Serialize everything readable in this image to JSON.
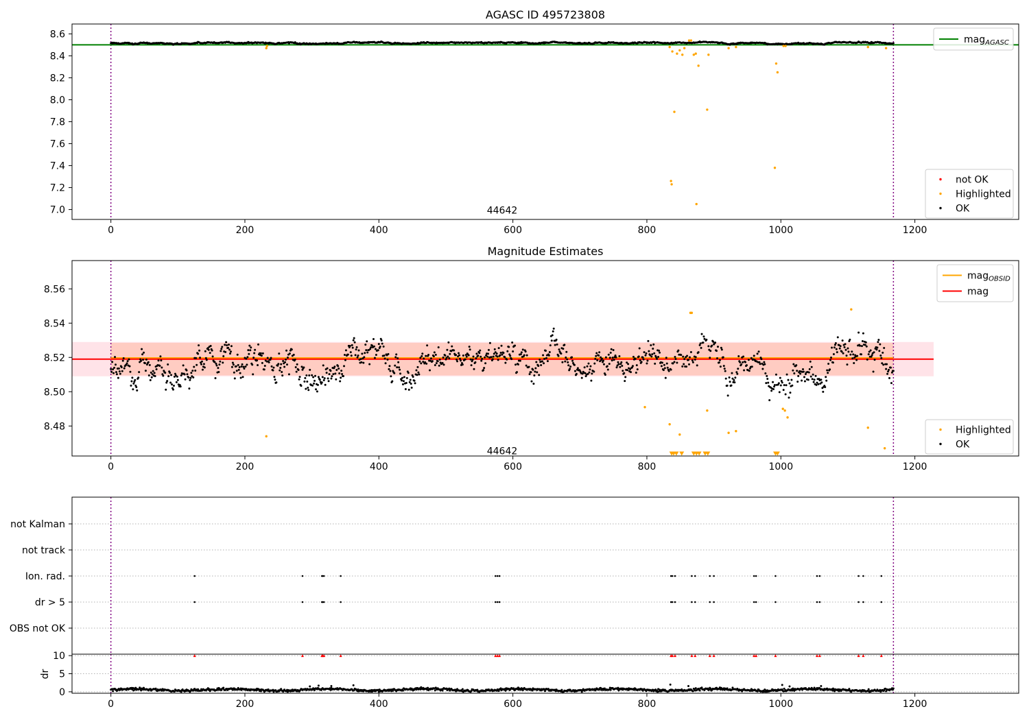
{
  "colors": {
    "ok": "#000000",
    "highlighted": "#ffa500",
    "not_ok": "#ff0000",
    "mag_agasc": "#008000",
    "mag_obsid": "#ffa500",
    "mag": "#ff0000",
    "band_outer": "#ffc0cb",
    "band_inner": "#ffa07a",
    "vline": "#800080",
    "grid": "#b0b0b0"
  },
  "chart_data": [
    {
      "id": "agasc",
      "type": "scatter",
      "title": "AGASC ID 495723808",
      "xlim": [
        -58,
        1355
      ],
      "ylim": [
        6.91,
        8.69
      ],
      "xticks": [
        0,
        200,
        400,
        600,
        800,
        1000,
        1200
      ],
      "yticks": [
        7.0,
        7.2,
        7.4,
        7.6,
        7.8,
        8.0,
        8.2,
        8.4,
        8.6
      ],
      "ytick_decimals": 1,
      "vlines": [
        0,
        1168
      ],
      "annotation": {
        "text": "44642",
        "x": 584,
        "y": 7.0
      },
      "hline": {
        "name": "mag_AGASC",
        "value": 8.5
      },
      "ok_band": {
        "lo": 8.498,
        "hi": 8.538
      },
      "highlighted": [
        {
          "x": 232,
          "y": 8.47
        },
        {
          "x": 233,
          "y": 8.49
        },
        {
          "x": 834,
          "y": 8.48
        },
        {
          "x": 836,
          "y": 7.26
        },
        {
          "x": 837,
          "y": 7.23
        },
        {
          "x": 838,
          "y": 8.44
        },
        {
          "x": 841,
          "y": 7.89
        },
        {
          "x": 845,
          "y": 8.42
        },
        {
          "x": 849,
          "y": 8.45
        },
        {
          "x": 853,
          "y": 8.41
        },
        {
          "x": 856,
          "y": 8.47
        },
        {
          "x": 863,
          "y": 8.54
        },
        {
          "x": 866,
          "y": 8.54
        },
        {
          "x": 870,
          "y": 8.41
        },
        {
          "x": 873,
          "y": 8.42
        },
        {
          "x": 874,
          "y": 7.05
        },
        {
          "x": 877,
          "y": 8.31
        },
        {
          "x": 890,
          "y": 7.91
        },
        {
          "x": 892,
          "y": 8.41
        },
        {
          "x": 922,
          "y": 8.47
        },
        {
          "x": 933,
          "y": 8.48
        },
        {
          "x": 991,
          "y": 7.38
        },
        {
          "x": 993,
          "y": 8.33
        },
        {
          "x": 995,
          "y": 8.25
        },
        {
          "x": 1004,
          "y": 8.49
        },
        {
          "x": 1007,
          "y": 8.49
        },
        {
          "x": 1130,
          "y": 8.48
        },
        {
          "x": 1157,
          "y": 8.47
        }
      ],
      "legends": [
        {
          "position": "upper-right",
          "items": [
            {
              "label": "mag",
              "sub": "AGASC",
              "kind": "line",
              "color_key": "mag_agasc"
            }
          ]
        },
        {
          "position": "lower-right",
          "items": [
            {
              "label": "not OK",
              "kind": "dot",
              "color_key": "not_ok"
            },
            {
              "label": "Highlighted",
              "kind": "dot",
              "color_key": "highlighted"
            },
            {
              "label": "OK",
              "kind": "dot",
              "color_key": "ok"
            }
          ]
        }
      ]
    },
    {
      "id": "estimates",
      "type": "scatter",
      "title": "Magnitude Estimates",
      "xlim": [
        -58,
        1355
      ],
      "ylim": [
        8.4625,
        8.5765
      ],
      "xticks": [
        0,
        200,
        400,
        600,
        800,
        1000,
        1200
      ],
      "yticks": [
        8.48,
        8.5,
        8.52,
        8.54,
        8.56
      ],
      "ytick_decimals": 2,
      "vlines": [
        0,
        1168
      ],
      "annotation": {
        "text": "44642",
        "x": 584,
        "y": 8.466
      },
      "mag_line": {
        "name": "mag",
        "value": 8.519,
        "x_range": [
          -58,
          1228
        ]
      },
      "mag_obsid_line": {
        "name": "mag_OBSID",
        "value": 8.5195,
        "x_range": [
          0,
          1168
        ]
      },
      "band_outer": {
        "lo": 8.509,
        "hi": 8.529,
        "x_range": [
          -58,
          1228
        ]
      },
      "band_inner": {
        "lo": 8.5095,
        "hi": 8.5285,
        "x_range": [
          0,
          1168
        ]
      },
      "ok_center": 8.518,
      "ok_sigma": 0.009,
      "highlighted": [
        {
          "x": 232,
          "y": 8.474
        },
        {
          "x": 797,
          "y": 8.491
        },
        {
          "x": 834,
          "y": 8.481
        },
        {
          "x": 837,
          "y": 8.463
        },
        {
          "x": 840,
          "y": 8.463
        },
        {
          "x": 844,
          "y": 8.463
        },
        {
          "x": 849,
          "y": 8.475
        },
        {
          "x": 852,
          "y": 8.463
        },
        {
          "x": 865,
          "y": 8.546
        },
        {
          "x": 867,
          "y": 8.546
        },
        {
          "x": 870,
          "y": 8.463
        },
        {
          "x": 874,
          "y": 8.463
        },
        {
          "x": 878,
          "y": 8.463
        },
        {
          "x": 887,
          "y": 8.463
        },
        {
          "x": 890,
          "y": 8.489
        },
        {
          "x": 891,
          "y": 8.463
        },
        {
          "x": 922,
          "y": 8.476
        },
        {
          "x": 933,
          "y": 8.477
        },
        {
          "x": 992,
          "y": 8.463
        },
        {
          "x": 995,
          "y": 8.463
        },
        {
          "x": 1003,
          "y": 8.49
        },
        {
          "x": 1006,
          "y": 8.489
        },
        {
          "x": 1010,
          "y": 8.485
        },
        {
          "x": 1105,
          "y": 8.548
        },
        {
          "x": 1130,
          "y": 8.479
        },
        {
          "x": 1155,
          "y": 8.467
        }
      ],
      "legends": [
        {
          "position": "upper-right",
          "items": [
            {
              "label": "mag",
              "sub": "OBSID",
              "kind": "line",
              "color_key": "mag_obsid"
            },
            {
              "label": "mag",
              "sub": "",
              "kind": "line",
              "color_key": "mag"
            }
          ]
        },
        {
          "position": "lower-right",
          "items": [
            {
              "label": "Highlighted",
              "kind": "dot",
              "color_key": "highlighted"
            },
            {
              "label": "OK",
              "kind": "dot",
              "color_key": "ok"
            }
          ]
        }
      ]
    },
    {
      "id": "flags",
      "type": "scatter",
      "xlim": [
        -58,
        1355
      ],
      "categories": [
        "not Kalman",
        "not track",
        "Ion. rad.",
        "dr > 5",
        "OBS not OK"
      ],
      "vlines": [
        0,
        1168
      ],
      "flag_points": {
        "Ion. rad.": [
          125,
          286,
          315,
          316,
          318,
          343,
          574,
          577,
          580,
          836,
          838,
          842,
          867,
          872,
          894,
          900,
          960,
          963,
          992,
          1054,
          1058,
          1116,
          1123,
          1150
        ],
        "dr > 5": [
          125,
          286,
          315,
          316,
          318,
          343,
          574,
          577,
          580,
          836,
          838,
          842,
          867,
          872,
          894,
          900,
          960,
          963,
          992,
          1054,
          1058,
          1116,
          1123,
          1150
        ]
      }
    },
    {
      "id": "dr",
      "type": "scatter",
      "ylabel": "dr",
      "xlim": [
        -58,
        1355
      ],
      "ylim": [
        -0.4,
        10.4
      ],
      "xticks": [
        0,
        200,
        400,
        600,
        800,
        1000,
        1200
      ],
      "yticks": [
        0,
        5,
        10
      ],
      "vlines": [
        0,
        1168
      ],
      "clipped_at_10": [
        125,
        286,
        315,
        316,
        318,
        343,
        574,
        577,
        580,
        836,
        838,
        842,
        867,
        872,
        894,
        900,
        960,
        963,
        992,
        1054,
        1058,
        1116,
        1123,
        1150
      ],
      "spikes": [
        {
          "x": 297,
          "y": 1.5
        },
        {
          "x": 310,
          "y": 1.7
        },
        {
          "x": 329,
          "y": 1.6
        },
        {
          "x": 362,
          "y": 1.8
        },
        {
          "x": 835,
          "y": 2.0
        },
        {
          "x": 862,
          "y": 1.6
        },
        {
          "x": 1002,
          "y": 1.9
        },
        {
          "x": 1013,
          "y": 1.5
        },
        {
          "x": 1060,
          "y": 1.6
        }
      ]
    }
  ]
}
